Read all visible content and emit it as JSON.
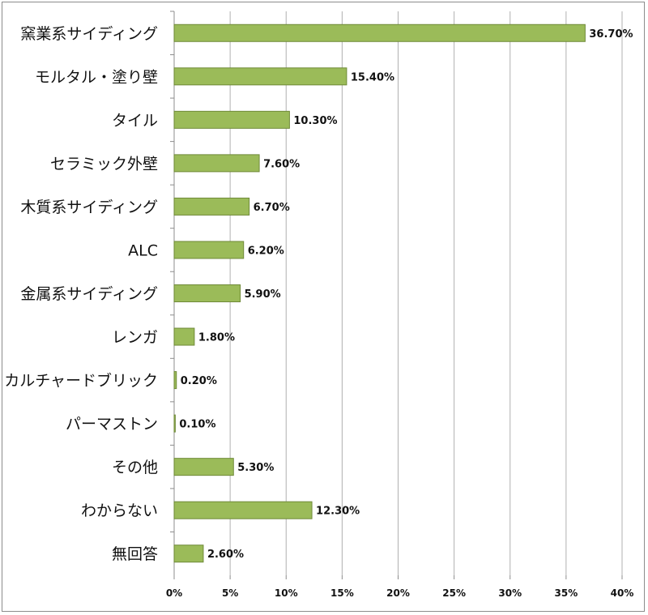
{
  "chart_data": {
    "type": "bar",
    "orientation": "horizontal",
    "title": "",
    "xlabel": "",
    "ylabel": "",
    "categories": [
      "窯業系サイディング",
      "モルタル・塗り壁",
      "タイル",
      "セラミック外壁",
      "木質系サイディング",
      "ALC",
      "金属系サイディング",
      "レンガ",
      "カルチャードブリック",
      "パーマストン",
      "その他",
      "わからない",
      "無回答"
    ],
    "values": [
      36.7,
      15.4,
      10.3,
      7.6,
      6.7,
      6.2,
      5.9,
      1.8,
      0.2,
      0.1,
      5.3,
      12.3,
      2.6
    ],
    "value_labels": [
      "36.70%",
      "15.40%",
      "10.30%",
      "7.60%",
      "6.70%",
      "6.20%",
      "5.90%",
      "1.80%",
      "0.20%",
      "0.10%",
      "5.30%",
      "12.30%",
      "2.60%"
    ],
    "xlim": [
      0,
      40
    ],
    "xticks": [
      0,
      5,
      10,
      15,
      20,
      25,
      30,
      35,
      40
    ],
    "xtick_labels": [
      "0%",
      "5%",
      "10%",
      "15%",
      "20%",
      "25%",
      "30%",
      "35%",
      "40%"
    ],
    "grid": true,
    "legend": "none",
    "colors": {
      "bar_fill": "#9bbb59",
      "bar_edge": "#6f8a38",
      "grid": "#b0b0b0",
      "axis": "#8c8c8c",
      "border": "#8c8c8c"
    }
  }
}
